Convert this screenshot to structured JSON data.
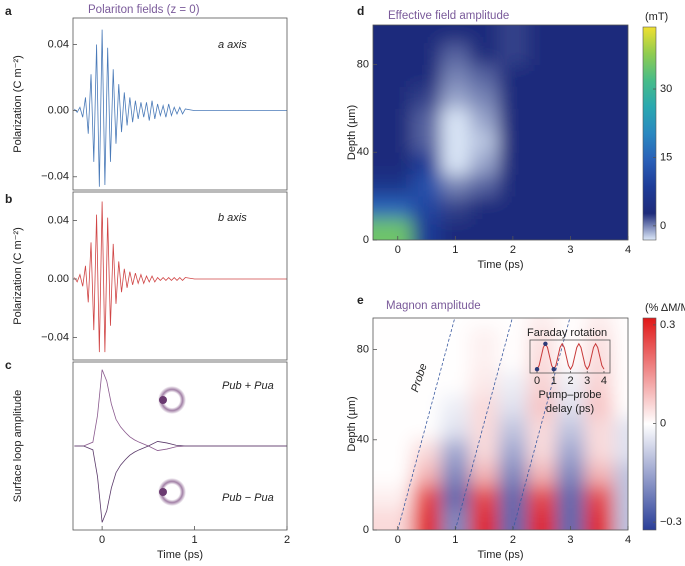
{
  "chart_data": [
    {
      "type": "line",
      "label": "a",
      "title": "Polariton fields (z = 0)",
      "ylabel": "Polarization (C m⁻²)",
      "xlim": [
        -0.315,
        2
      ],
      "ylim": [
        -0.048,
        0.056
      ],
      "yticks": [
        {
          "value": -0.04,
          "label": "−0.04"
        },
        {
          "value": 0,
          "label": "0.00"
        },
        0.04
      ],
      "x": [
        -0.3,
        -0.27,
        -0.24,
        -0.21,
        -0.18,
        -0.15,
        -0.12,
        -0.09,
        -0.06,
        -0.03,
        0,
        0.03,
        0.06,
        0.09,
        0.12,
        0.15,
        0.18,
        0.21,
        0.24,
        0.27,
        0.3,
        0.33,
        0.36,
        0.39,
        0.42,
        0.45,
        0.48,
        0.51,
        0.54,
        0.57,
        0.6,
        0.63,
        0.66,
        0.69,
        0.72,
        0.75,
        0.78,
        0.81,
        0.84,
        0.87,
        0.9,
        1.0,
        1.2,
        1.5,
        2.0
      ],
      "series": [
        {
          "name": "a axis",
          "color": "#4a7ab8",
          "values": [
            0.001,
            -0.001,
            0.002,
            -0.004,
            0.008,
            -0.014,
            0.022,
            -0.031,
            0.04,
            -0.046,
            0.049,
            -0.045,
            0.038,
            -0.031,
            0.025,
            -0.02,
            0.016,
            -0.013,
            0.011,
            -0.009,
            0.008,
            -0.007,
            0.006,
            -0.005,
            0.005,
            -0.004,
            0.005,
            -0.006,
            0.006,
            -0.005,
            0.004,
            -0.003,
            0.003,
            -0.004,
            0.004,
            -0.003,
            0.002,
            -0.002,
            0.002,
            -0.002,
            0.001,
            0,
            0,
            0,
            0
          ]
        }
      ]
    },
    {
      "type": "line",
      "label": "b",
      "ylabel": "Polarization (C m⁻²)",
      "xlim": [
        -0.315,
        2
      ],
      "ylim": [
        -0.0554,
        0.0595
      ],
      "yticks": [
        {
          "value": -0.04,
          "label": "−0.04"
        },
        {
          "value": 0,
          "label": "0.00"
        },
        0.04
      ],
      "x": [
        -0.3,
        -0.27,
        -0.24,
        -0.21,
        -0.18,
        -0.15,
        -0.12,
        -0.09,
        -0.06,
        -0.03,
        0,
        0.03,
        0.06,
        0.09,
        0.12,
        0.15,
        0.18,
        0.21,
        0.24,
        0.27,
        0.3,
        0.33,
        0.36,
        0.39,
        0.42,
        0.45,
        0.48,
        0.51,
        0.54,
        0.57,
        0.6,
        0.63,
        0.66,
        0.69,
        0.72,
        0.75,
        0.78,
        0.81,
        0.84,
        0.87,
        0.9,
        1.0,
        1.2,
        1.5,
        2.0
      ],
      "series": [
        {
          "name": "b axis",
          "color": "#d04545",
          "values": [
            0.001,
            -0.002,
            0.003,
            -0.005,
            0.009,
            -0.016,
            0.025,
            -0.035,
            0.044,
            -0.05,
            0.053,
            -0.05,
            0.042,
            -0.032,
            0.024,
            -0.017,
            0.012,
            -0.009,
            0.007,
            -0.006,
            0.005,
            -0.004,
            0.004,
            -0.003,
            0.003,
            -0.003,
            0.002,
            -0.002,
            0.002,
            -0.002,
            0.001,
            -0.001,
            0.001,
            -0.001,
            0.001,
            -0.001,
            0.001,
            -0.001,
            0.001,
            -0.001,
            0.001,
            0,
            0,
            0,
            0
          ]
        }
      ]
    },
    {
      "type": "line",
      "label": "c",
      "ylabel": "Surface loop amplitude",
      "xlabel": "Time (ps)",
      "xlim": [
        -0.315,
        2
      ],
      "ylim": [
        -1.1,
        1.1
      ],
      "xticks": [
        0,
        1,
        2
      ],
      "x": [
        -0.3,
        -0.2,
        -0.1,
        -0.05,
        0,
        0.05,
        0.1,
        0.15,
        0.2,
        0.25,
        0.3,
        0.35,
        0.4,
        0.5,
        0.6,
        0.7,
        0.8,
        0.9,
        1,
        1.5,
        2
      ],
      "series": [
        {
          "name": "Pub + Pua",
          "color": "#8a5a8e",
          "values": [
            0,
            0,
            0.05,
            0.4,
            1,
            0.85,
            0.55,
            0.35,
            0.25,
            0.18,
            0.12,
            0.08,
            0.05,
            0,
            -0.06,
            -0.04,
            -0.01,
            0,
            0,
            0,
            0
          ]
        },
        {
          "name": "Pub − Pua",
          "color": "#5a3a6a",
          "values": [
            0,
            0,
            -0.05,
            -0.4,
            -1,
            -0.85,
            -0.55,
            -0.35,
            -0.25,
            -0.18,
            -0.12,
            -0.08,
            -0.05,
            0,
            0.06,
            0.04,
            0.01,
            0,
            0,
            0,
            0
          ]
        }
      ]
    },
    {
      "type": "heatmap",
      "label": "d",
      "title": "Effective field amplitude",
      "xlabel": "Time (ps)",
      "ylabel": "Depth (µm)",
      "xlim": [
        -0.43,
        4
      ],
      "ylim": [
        0,
        98
      ],
      "xticks": [
        0,
        1,
        2,
        3,
        4
      ],
      "yticks": [
        0,
        40,
        80
      ],
      "x": [
        0,
        0.5,
        1,
        1.5,
        2,
        2.5,
        3,
        3.5,
        4
      ],
      "y": [
        5,
        15,
        25,
        35,
        45,
        55,
        65,
        75,
        85,
        95
      ],
      "z": [
        [
          35,
          8,
          3,
          3,
          3,
          3,
          3,
          3,
          3
        ],
        [
          15,
          10,
          2,
          3,
          3,
          3,
          3,
          3,
          3
        ],
        [
          6,
          12,
          0,
          1,
          3,
          3,
          3,
          3,
          3
        ],
        [
          3,
          8,
          -3,
          -1,
          3,
          3,
          3,
          3,
          3
        ],
        [
          3,
          1,
          -3,
          -2,
          3,
          3,
          3,
          3,
          3
        ],
        [
          3,
          1,
          -3,
          -1,
          3,
          3,
          3,
          3,
          3
        ],
        [
          3,
          2,
          -1,
          0,
          3,
          3,
          3,
          3,
          3
        ],
        [
          3,
          3,
          0,
          1,
          3,
          3,
          3,
          3,
          3
        ],
        [
          3,
          3,
          1,
          3,
          2,
          3,
          3,
          3,
          3
        ],
        [
          3,
          3,
          3,
          3,
          2,
          3,
          3,
          3,
          3
        ]
      ],
      "colorbar": {
        "label": "(mT)",
        "lim": [
          -3.1,
          43.6
        ],
        "ticks": [
          0,
          15,
          30
        ],
        "colors": [
          "#dce8f8",
          "#1e2b7a",
          "#1e3c98",
          "#2a60b8",
          "#2a88c0",
          "#2aa8b0",
          "#48bc88",
          "#90cc50",
          "#f0e030"
        ]
      }
    },
    {
      "type": "heatmap",
      "label": "e",
      "title": "Magnon amplitude",
      "xlabel": "Time (ps)",
      "ylabel": "Depth (µm)",
      "annotation": "Probe",
      "xlim": [
        -0.43,
        4
      ],
      "ylim": [
        0,
        94
      ],
      "xticks": [
        0,
        1,
        2,
        3,
        4
      ],
      "yticks": [
        0,
        40,
        80
      ],
      "x": [
        0,
        0.5,
        1,
        1.5,
        2,
        2.5,
        3,
        3.5,
        4
      ],
      "y": [
        5,
        15,
        25,
        35,
        45,
        55,
        65,
        75,
        85,
        95
      ],
      "z": [
        [
          0.05,
          0.3,
          -0.2,
          0.3,
          -0.25,
          0.3,
          -0.25,
          0.3,
          -0.1
        ],
        [
          0.02,
          0.25,
          -0.25,
          0.25,
          -0.25,
          0.25,
          -0.25,
          0.25,
          -0.1
        ],
        [
          0,
          0.1,
          -0.2,
          0.1,
          -0.2,
          0.1,
          -0.2,
          0.1,
          -0.1
        ],
        [
          0,
          0.05,
          -0.15,
          0.05,
          -0.15,
          0.05,
          -0.15,
          0.05,
          -0.05
        ],
        [
          0,
          0,
          -0.05,
          0.05,
          -0.1,
          0.05,
          -0.1,
          0.05,
          -0.05
        ],
        [
          0,
          0,
          -0.03,
          0.05,
          -0.05,
          0.08,
          -0.05,
          0.08,
          0
        ],
        [
          0,
          0,
          0,
          0.03,
          -0.03,
          0.06,
          -0.03,
          0.06,
          0
        ],
        [
          0,
          0,
          0,
          0.02,
          0,
          0.05,
          0,
          0.05,
          0
        ],
        [
          0,
          0,
          0,
          0.02,
          0,
          0.04,
          0,
          0.04,
          0
        ],
        [
          0,
          0,
          0,
          0,
          0,
          0.02,
          0,
          0.02,
          0
        ]
      ],
      "colorbar": {
        "label": "(% ΔM/Ms)",
        "lim": [
          -0.324,
          0.321
        ],
        "ticks": [
          {
            "value": -0.3,
            "label": "−0.3"
          },
          0,
          0.3
        ],
        "colors": [
          "#2a3e98",
          "#ffffff",
          "#e01818"
        ]
      }
    },
    {
      "type": "line",
      "title": "Faraday rotation",
      "xlabel": [
        "Pump–probe",
        "delay (ps)"
      ],
      "xlim": [
        -0.42,
        4.36
      ],
      "ylim": [
        -1.3,
        1.3
      ],
      "xticks": [
        0,
        1,
        2,
        3,
        4
      ],
      "x": [
        0,
        0.125,
        0.25,
        0.375,
        0.5,
        0.625,
        0.75,
        0.875,
        1,
        1.125,
        1.25,
        1.375,
        1.5,
        1.625,
        1.75,
        1.875,
        2,
        2.125,
        2.25,
        2.375,
        2.5,
        2.625,
        2.75,
        2.875,
        3,
        3.125,
        3.25,
        3.375,
        3.5,
        3.625,
        3.75,
        3.875,
        4
      ],
      "series": [
        {
          "color": "#c83a3a",
          "values": [
            -1,
            -0.71,
            0,
            0.71,
            1,
            0.71,
            0,
            -0.71,
            -1,
            -0.71,
            0,
            0.71,
            1,
            0.71,
            0,
            -0.71,
            -1,
            -0.71,
            0,
            0.71,
            1,
            0.71,
            0,
            -0.71,
            -1,
            -0.71,
            0,
            0.71,
            1,
            0.71,
            0,
            -0.71,
            -1
          ]
        }
      ],
      "points": {
        "color": "#2a3a78",
        "x": [
          0,
          0.5,
          1
        ],
        "values": [
          -1,
          1,
          -1
        ]
      }
    }
  ]
}
